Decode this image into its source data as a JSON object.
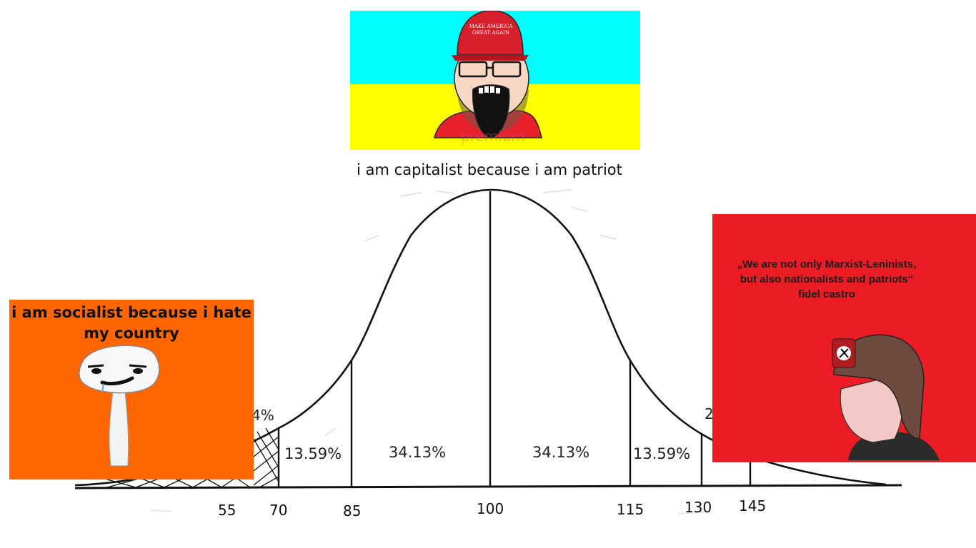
{
  "bell_curve": {
    "axis_ticks": [
      "55",
      "70",
      "85",
      "100",
      "115",
      "130",
      "145"
    ],
    "percent_labels": [
      "13.59%",
      "34.13%",
      "34.13%",
      "13.59%"
    ],
    "partial_labels": [
      "4%",
      "2"
    ]
  },
  "top_panel": {
    "hat_text_line1": "MAKE AMERICA",
    "hat_text_line2": "GREAT AGAIN",
    "watermark": "premium",
    "caption": "i am capitalist because i am patriot",
    "colors": {
      "top": "#00ffff",
      "bottom": "#ffff00",
      "shirt": "#e8212a"
    }
  },
  "left_panel": {
    "text": "i am socialist because i hate my country",
    "color": "#ff6600"
  },
  "right_panel": {
    "quote_line1": "„We are not only Marxist-Leninists,",
    "quote_line2": "but also nationalists and patriots“",
    "quote_author": "fidel castro",
    "color": "#ec1c24"
  }
}
